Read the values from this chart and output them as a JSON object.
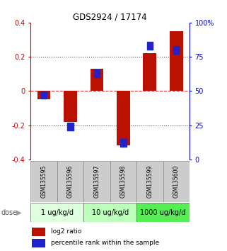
{
  "title": "GDS2924 / 17174",
  "samples": [
    "GSM135595",
    "GSM135596",
    "GSM135597",
    "GSM135598",
    "GSM135599",
    "GSM135600"
  ],
  "log2_ratio": [
    -0.05,
    -0.18,
    0.13,
    -0.32,
    0.22,
    0.35
  ],
  "percentile_rank": [
    47,
    24,
    63,
    12,
    83,
    80
  ],
  "bar_color": "#bb1100",
  "square_color": "#2222cc",
  "ylim_left": [
    -0.4,
    0.4
  ],
  "ylim_right": [
    0,
    100
  ],
  "yticks_left": [
    -0.4,
    -0.2,
    0.0,
    0.2,
    0.4
  ],
  "yticks_right": [
    0,
    25,
    50,
    75,
    100
  ],
  "ytick_labels_right": [
    "0",
    "25",
    "50",
    "75",
    "100%"
  ],
  "hlines_dotted": [
    -0.2,
    0.2
  ],
  "hline_zero": 0.0,
  "dose_groups": [
    {
      "label": "1 ug/kg/d",
      "samples": [
        0,
        1
      ],
      "color": "#ddffdd"
    },
    {
      "label": "10 ug/kg/d",
      "samples": [
        2,
        3
      ],
      "color": "#bbffbb"
    },
    {
      "label": "1000 ug/kg/d",
      "samples": [
        4,
        5
      ],
      "color": "#55ee55"
    }
  ],
  "sample_box_color": "#cccccc",
  "legend_log2": "log2 ratio",
  "legend_pct": "percentile rank within the sample",
  "dose_label": "dose",
  "bar_width": 0.5,
  "zero_line_color": "#ee3333",
  "left_axis_color": "#cc0000",
  "right_axis_color": "#0000cc",
  "title_fontsize": 8.5,
  "tick_fontsize": 7,
  "sample_fontsize": 5.5,
  "dose_fontsize": 7,
  "legend_fontsize": 6.5
}
